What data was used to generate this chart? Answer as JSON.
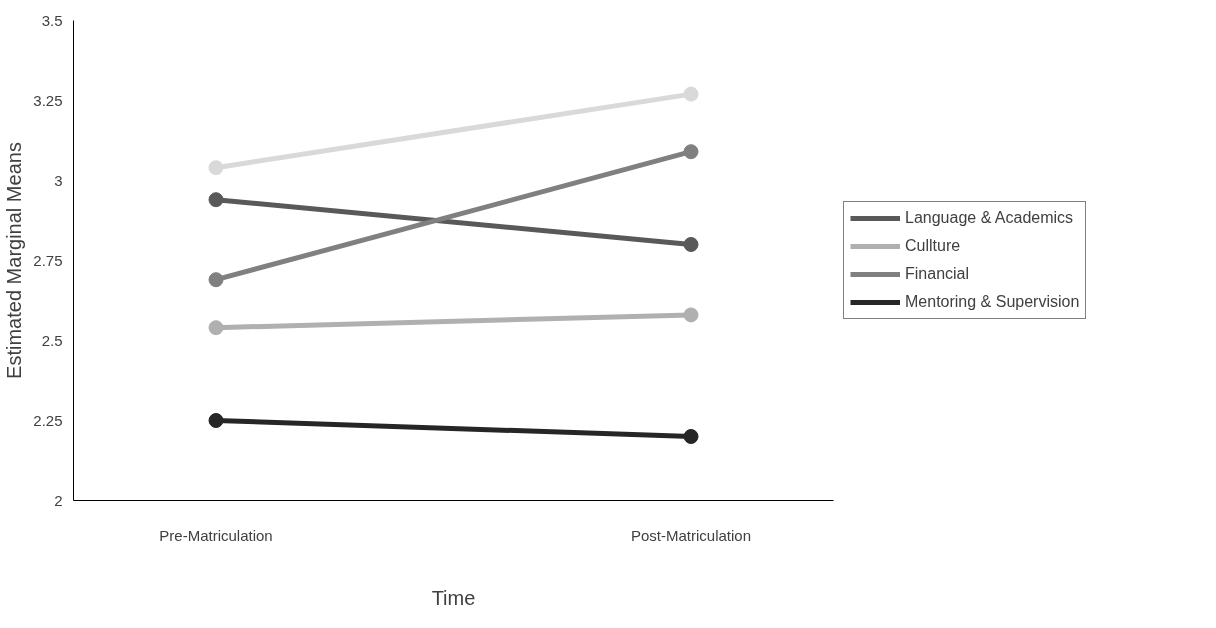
{
  "chart_data": {
    "type": "line",
    "xlabel": "Time",
    "ylabel": "Estimated Marginal Means",
    "categories": [
      "Pre-Matriculation",
      "Post-Matriculation"
    ],
    "ylim": [
      2,
      3.5
    ],
    "yticks": [
      2,
      2.25,
      2.5,
      2.75,
      3,
      3.25,
      3.5
    ],
    "grid": false,
    "legend": "right",
    "marker": "circle",
    "line_style": "solid",
    "series": [
      {
        "name": "Language & Academics",
        "color": "#595959",
        "values": [
          2.94,
          2.8
        ]
      },
      {
        "name": "Cullture",
        "color": "#b0b0b0",
        "values": [
          2.54,
          2.58
        ]
      },
      {
        "name": "Financial",
        "color": "#808080",
        "values": [
          2.69,
          3.09
        ]
      },
      {
        "name": "Mentoring & Supervision",
        "color": "#262626",
        "values": [
          2.25,
          2.2
        ]
      },
      {
        "color": "#d9d9d9",
        "values": [
          3.04,
          3.27
        ]
      }
    ]
  }
}
